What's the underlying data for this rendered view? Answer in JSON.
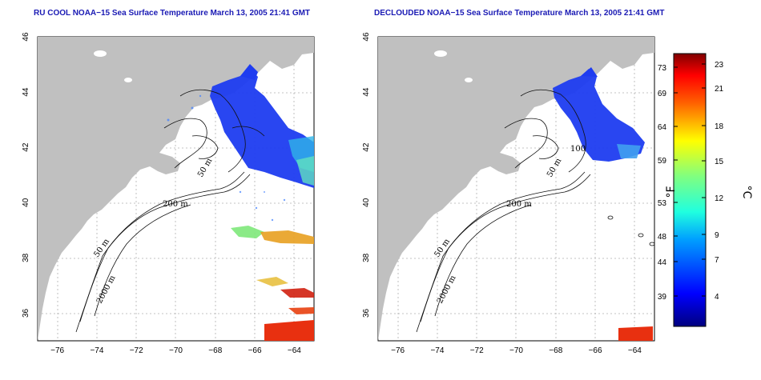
{
  "titles": {
    "left": "RU COOL NOAA−15 Sea Surface Temperature March 13, 2005 21:41 GMT",
    "right": "DECLOUDED NOAA−15 Sea Surface Temperature March 13, 2005 21:41 GMT"
  },
  "axes": {
    "x_ticks": [
      "−76",
      "−74",
      "−72",
      "−70",
      "−68",
      "−66",
      "−64"
    ],
    "y_ticks": [
      "46",
      "44",
      "42",
      "40",
      "38",
      "36"
    ],
    "x_range": [
      -77,
      -63
    ],
    "y_range": [
      35,
      46
    ]
  },
  "contours": {
    "left": [
      "50 m",
      "200 m",
      "50 m",
      "2000 m"
    ],
    "right": [
      "100",
      "50 m",
      "200 m",
      "50 m",
      "2000 m"
    ]
  },
  "colorbar": {
    "fahrenheit_label": "°F",
    "celsius_label": "°C",
    "fahrenheit_ticks": [
      "73",
      "69",
      "64",
      "59",
      "53",
      "48",
      "44",
      "39"
    ],
    "celsius_ticks": [
      "23",
      "21",
      "18",
      "15",
      "12",
      "9",
      "7",
      "4"
    ]
  },
  "colors": {
    "land": "#c0c0c0",
    "ocean_bg": "#ffffff",
    "cold": "#1e3cf0",
    "warm": "#e83010",
    "title": "#1a1ab4"
  }
}
